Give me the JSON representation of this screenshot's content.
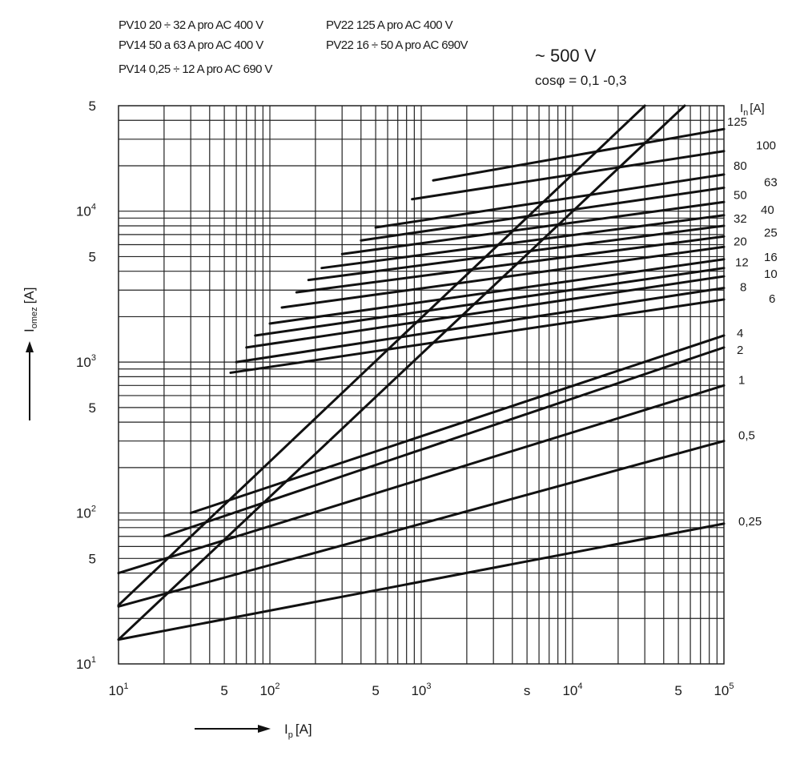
{
  "header": {
    "legend_left": [
      "PV10 20 ÷ 32 A pro AC 400 V",
      "PV14  50 a 63 A pro AC 400 V",
      "PV14 0,25 ÷ 12 A pro AC 690 V"
    ],
    "legend_right": [
      "PV22 125 A pro AC 400 V",
      "PV22 16 ÷ 50 A pro AC 690V"
    ],
    "voltage": "~ 500 V",
    "cosphi": "cosφ = 0,1 -0,3"
  },
  "chart_data": {
    "type": "line",
    "x_scale": "log",
    "y_scale": "log",
    "xlim": [
      10,
      100000
    ],
    "ylim": [
      10,
      50000
    ],
    "grid": true,
    "xlabel": "I",
    "xlabel_sub": "p",
    "xlabel_unit": "[A]",
    "ylabel": "I",
    "ylabel_sub": "omez",
    "ylabel_unit": "[A]",
    "series_label_header": "I",
    "series_label_header_sub": "n",
    "series_label_header_unit": "[A]",
    "x_ticks": [
      {
        "value": 10,
        "base": "10",
        "exp": "1"
      },
      {
        "value": 50,
        "base": "5",
        "exp": ""
      },
      {
        "value": 100,
        "base": "10",
        "exp": "2"
      },
      {
        "value": 500,
        "base": "5",
        "exp": ""
      },
      {
        "value": 1000,
        "base": "10",
        "exp": "3"
      },
      {
        "value": 5000,
        "base": "s",
        "exp": ""
      },
      {
        "value": 10000,
        "base": "10",
        "exp": "4"
      },
      {
        "value": 50000,
        "base": "5",
        "exp": ""
      },
      {
        "value": 100000,
        "base": "10",
        "exp": "5"
      }
    ],
    "y_ticks": [
      {
        "value": 50000,
        "base": "5",
        "exp": ""
      },
      {
        "value": 10000,
        "base": "10",
        "exp": "4"
      },
      {
        "value": 5000,
        "base": "5",
        "exp": ""
      },
      {
        "value": 1000,
        "base": "10",
        "exp": "3"
      },
      {
        "value": 500,
        "base": "5",
        "exp": ""
      },
      {
        "value": 100,
        "base": "10",
        "exp": "2"
      },
      {
        "value": 50,
        "base": "5",
        "exp": ""
      },
      {
        "value": 10,
        "base": "10",
        "exp": "1"
      }
    ],
    "envelopes": [
      {
        "x": [
          10,
          30000
        ],
        "y": [
          24.5,
          50000
        ]
      },
      {
        "x": [
          10,
          55000
        ],
        "y": [
          14.5,
          50000
        ]
      }
    ],
    "series": [
      {
        "name": "125",
        "x": [
          1200,
          100000
        ],
        "y": [
          16000,
          35000
        ]
      },
      {
        "name": "100",
        "x": [
          870,
          100000
        ],
        "y": [
          12000,
          25000
        ]
      },
      {
        "name": "80",
        "x": [
          500,
          100000
        ],
        "y": [
          7800,
          17500
        ]
      },
      {
        "name": "63",
        "x": [
          400,
          100000
        ],
        "y": [
          6400,
          14300
        ]
      },
      {
        "name": "50",
        "x": [
          300,
          100000
        ],
        "y": [
          5200,
          11500
        ]
      },
      {
        "name": "40",
        "x": [
          220,
          100000
        ],
        "y": [
          4200,
          9400
        ]
      },
      {
        "name": "32",
        "x": [
          180,
          100000
        ],
        "y": [
          3500,
          8000
        ]
      },
      {
        "name": "25",
        "x": [
          150,
          100000
        ],
        "y": [
          2900,
          6800
        ]
      },
      {
        "name": "20",
        "x": [
          120,
          100000
        ],
        "y": [
          2300,
          5800
        ]
      },
      {
        "name": "16",
        "x": [
          100,
          100000
        ],
        "y": [
          1800,
          4800
        ]
      },
      {
        "name": "12",
        "x": [
          80,
          100000
        ],
        "y": [
          1500,
          4200
        ]
      },
      {
        "name": "10",
        "x": [
          70,
          100000
        ],
        "y": [
          1250,
          3700
        ]
      },
      {
        "name": "8",
        "x": [
          60,
          100000
        ],
        "y": [
          1000,
          3100
        ]
      },
      {
        "name": "6",
        "x": [
          55,
          100000
        ],
        "y": [
          850,
          2600
        ]
      },
      {
        "name": "4",
        "x": [
          30,
          100000
        ],
        "y": [
          100,
          1500
        ]
      },
      {
        "name": "2",
        "x": [
          20,
          100000
        ],
        "y": [
          70,
          1250
        ]
      },
      {
        "name": "1",
        "x": [
          10,
          100000
        ],
        "y": [
          40,
          700
        ]
      },
      {
        "name": "0,5",
        "x": [
          10,
          100000
        ],
        "y": [
          24,
          300
        ]
      },
      {
        "name": "0,25",
        "x": [
          10,
          100000
        ],
        "y": [
          14.5,
          85
        ]
      }
    ]
  }
}
